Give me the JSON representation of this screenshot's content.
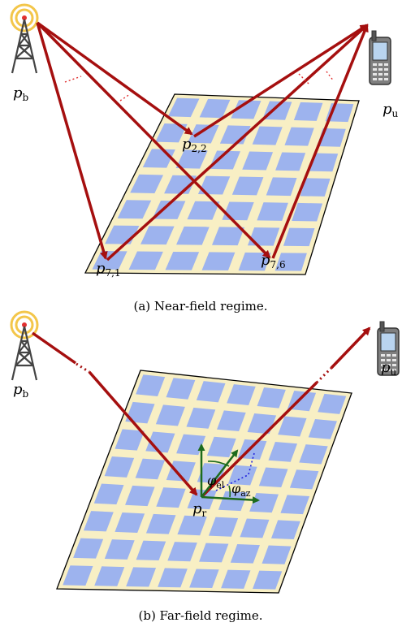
{
  "near_field": {
    "caption": "(a) Near-field regime.",
    "labels": {
      "bs": {
        "base": "p",
        "sub": "b"
      },
      "user": {
        "base": "p",
        "sub": "u"
      },
      "e22": {
        "base": "p",
        "sub": "2,2"
      },
      "e71": {
        "base": "p",
        "sub": "7,1"
      },
      "e76": {
        "base": "p",
        "sub": "7,6"
      }
    }
  },
  "far_field": {
    "caption": "(b) Far-field regime.",
    "labels": {
      "bs": {
        "base": "p",
        "sub": "b"
      },
      "user": {
        "base": "p",
        "sub": "u"
      },
      "ris": {
        "base": "p",
        "sub": "r"
      },
      "elevation": {
        "base": "φ",
        "sub": "el"
      },
      "azimuth": {
        "base": "φ",
        "sub": "az"
      }
    }
  },
  "colors": {
    "arrow": "#a50f0f",
    "panel": "#f8efc4",
    "cell": "#9db3ee",
    "grid_arrow": "#1d6b1d",
    "dotted_blue": "#2222dd"
  }
}
